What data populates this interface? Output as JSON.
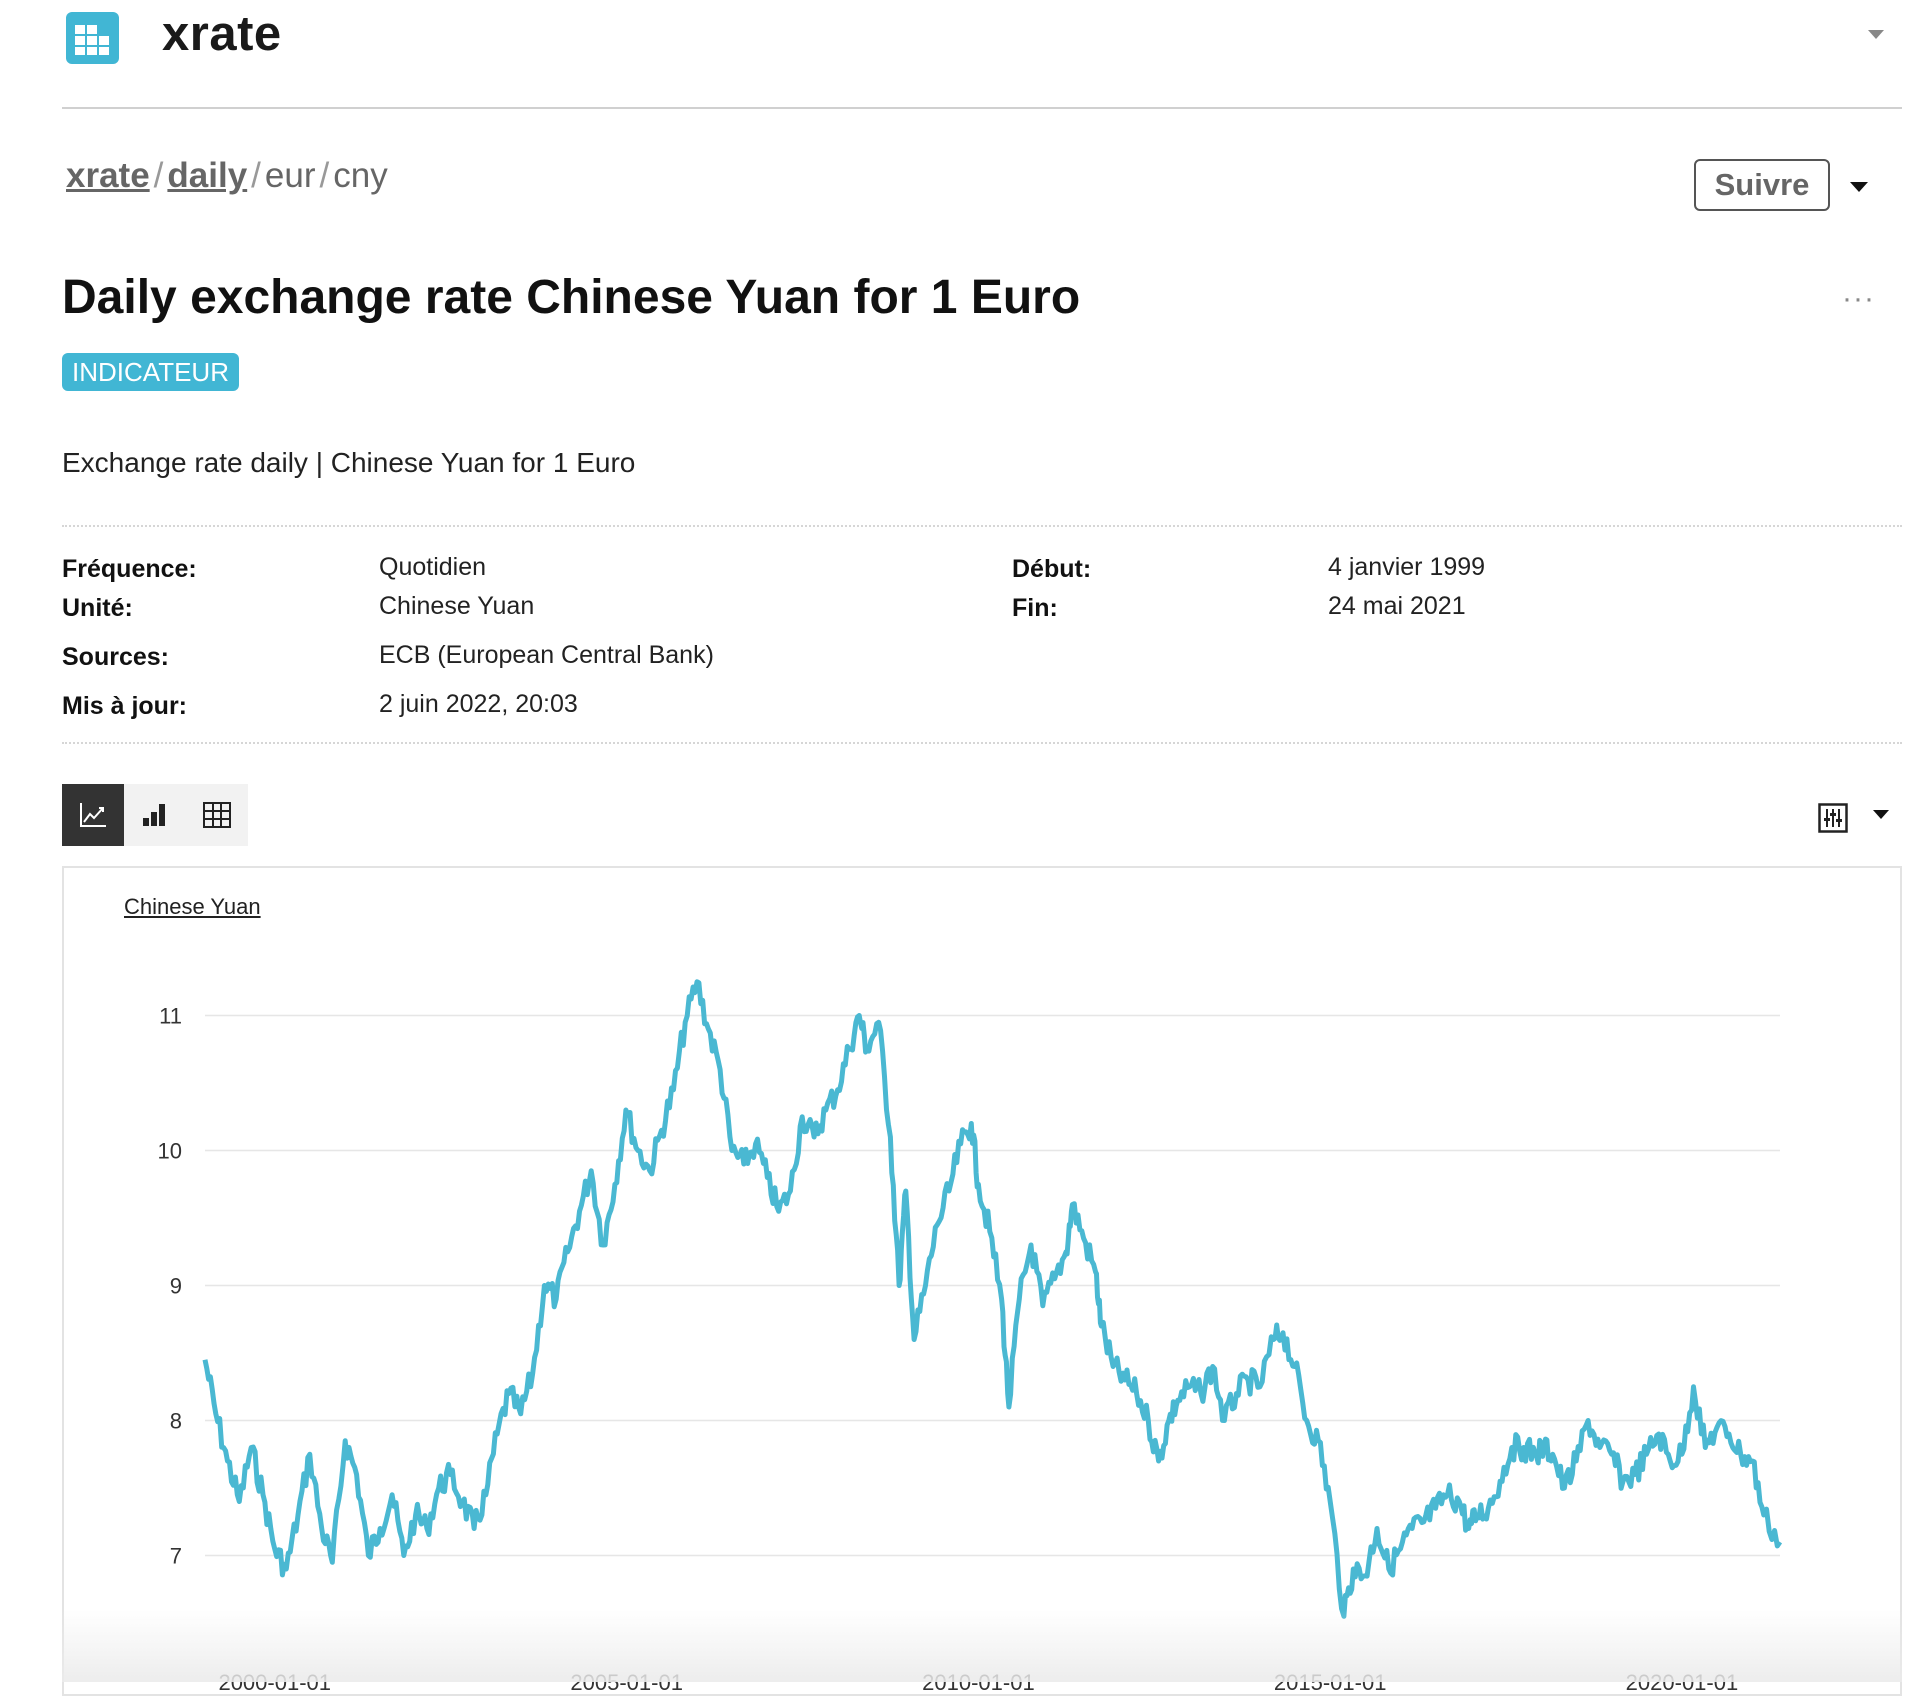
{
  "app": {
    "title": "xrate"
  },
  "breadcrumb": [
    {
      "label": "xrate",
      "link": true
    },
    {
      "label": "daily",
      "link": true
    },
    {
      "label": "eur",
      "link": false
    },
    {
      "label": "cny",
      "link": false
    }
  ],
  "follow_button": {
    "label": "Suivre"
  },
  "page": {
    "title": "Daily exchange rate Chinese Yuan for 1 Euro",
    "badge": "INDICATEUR",
    "description": "Exchange rate daily | Chinese Yuan for 1 Euro",
    "more": "···"
  },
  "metadata": {
    "frequency": {
      "label": "Fréquence:",
      "value": "Quotidien"
    },
    "unit": {
      "label": "Unité:",
      "value": "Chinese Yuan"
    },
    "sources": {
      "label": "Sources:",
      "value": "ECB (European Central Bank)"
    },
    "updated": {
      "label": "Mis à jour:",
      "value": "2 juin 2022, 20:03"
    },
    "start": {
      "label": "Début:",
      "value": "4 janvier 1999"
    },
    "end": {
      "label": "Fin:",
      "value": "24 mai 2021"
    }
  },
  "view_tabs": [
    {
      "icon": "line-chart-icon",
      "active": true
    },
    {
      "icon": "bar-chart-icon",
      "active": false
    },
    {
      "icon": "table-grid-icon",
      "active": false
    }
  ],
  "colors": {
    "accent": "#41b6d4",
    "series": "#4ab8d2",
    "active_tab": "#333333"
  },
  "chart_data": {
    "type": "line",
    "ylabel": "Chinese Yuan",
    "yticks": [
      7,
      8,
      9,
      10,
      11
    ],
    "ylim": [
      6.5,
      11.4
    ],
    "xlim": [
      "1999-01-04",
      "2021-05-24"
    ],
    "xticks": [
      "2000-01-01",
      "2005-01-01",
      "2010-01-01",
      "2015-01-01",
      "2020-01-01"
    ],
    "grid": true,
    "series": [
      {
        "name": "",
        "x": [
          "1999-01-04",
          "1999-03-01",
          "1999-05-01",
          "1999-07-01",
          "1999-09-01",
          "1999-11-01",
          "2000-01-01",
          "2000-03-01",
          "2000-05-01",
          "2000-07-01",
          "2000-09-01",
          "2000-10-26",
          "2001-01-01",
          "2001-03-01",
          "2001-05-01",
          "2001-07-01",
          "2001-09-01",
          "2001-11-01",
          "2002-01-01",
          "2002-03-01",
          "2002-05-01",
          "2002-07-01",
          "2002-09-01",
          "2002-11-01",
          "2003-01-01",
          "2003-03-01",
          "2003-05-01",
          "2003-07-01",
          "2003-09-01",
          "2003-11-01",
          "2004-01-01",
          "2004-03-01",
          "2004-05-01",
          "2004-07-01",
          "2004-09-01",
          "2004-11-01",
          "2004-12-28",
          "2005-03-01",
          "2005-05-01",
          "2005-07-01",
          "2005-09-01",
          "2005-11-01",
          "2006-01-01",
          "2006-03-01",
          "2006-05-01",
          "2006-07-01",
          "2006-09-01",
          "2006-11-01",
          "2007-01-01",
          "2007-03-01",
          "2007-05-01",
          "2007-07-01",
          "2007-09-01",
          "2007-11-01",
          "2008-01-01",
          "2008-03-01",
          "2008-04-22",
          "2008-06-01",
          "2008-08-01",
          "2008-10-01",
          "2008-11-15",
          "2008-12-20",
          "2009-02-01",
          "2009-04-01",
          "2009-06-01",
          "2009-08-01",
          "2009-10-01",
          "2009-11-25",
          "2010-01-01",
          "2010-03-01",
          "2010-05-01",
          "2010-06-08",
          "2010-08-01",
          "2010-10-01",
          "2010-12-01",
          "2011-02-01",
          "2011-04-01",
          "2011-05-04",
          "2011-07-01",
          "2011-09-01",
          "2011-10-01",
          "2011-12-01",
          "2012-02-01",
          "2012-04-01",
          "2012-06-01",
          "2012-07-24",
          "2012-09-15",
          "2012-11-01",
          "2013-01-01",
          "2013-03-01",
          "2013-05-01",
          "2013-07-01",
          "2013-09-01",
          "2013-11-01",
          "2014-01-01",
          "2014-03-13",
          "2014-05-01",
          "2014-07-01",
          "2014-09-01",
          "2014-11-01",
          "2015-01-01",
          "2015-03-13",
          "2015-05-01",
          "2015-07-01",
          "2015-09-01",
          "2015-11-01",
          "2016-01-01",
          "2016-03-01",
          "2016-05-01",
          "2016-07-01",
          "2016-09-01",
          "2016-11-01",
          "2016-12-20",
          "2017-02-01",
          "2017-04-01",
          "2017-06-01",
          "2017-08-01",
          "2017-10-01",
          "2017-12-01",
          "2018-01-15",
          "2018-03-01",
          "2018-05-01",
          "2018-07-01",
          "2018-09-01",
          "2018-11-01",
          "2019-01-01",
          "2019-03-01",
          "2019-05-01",
          "2019-07-01",
          "2019-09-03",
          "2019-11-01",
          "2020-01-01",
          "2020-03-01",
          "2020-05-01",
          "2020-07-01",
          "2020-09-01",
          "2020-11-01",
          "2021-01-01",
          "2021-03-01",
          "2021-05-24"
        ],
        "values": [
          8.45,
          8.05,
          7.7,
          7.4,
          7.8,
          7.45,
          7.05,
          6.9,
          7.3,
          7.75,
          7.2,
          6.95,
          7.85,
          7.6,
          7.0,
          7.2,
          7.45,
          7.0,
          7.3,
          7.2,
          7.5,
          7.6,
          7.4,
          7.2,
          7.45,
          7.9,
          8.2,
          8.05,
          8.35,
          9.0,
          8.9,
          9.25,
          9.55,
          9.85,
          9.3,
          9.75,
          10.3,
          10.0,
          9.85,
          10.15,
          10.45,
          10.95,
          11.25,
          10.9,
          10.6,
          10.0,
          9.9,
          10.05,
          9.8,
          9.55,
          9.7,
          10.25,
          10.1,
          10.3,
          10.45,
          10.75,
          11.0,
          10.75,
          10.95,
          10.1,
          9.0,
          9.7,
          8.6,
          9.0,
          9.45,
          9.7,
          10.05,
          10.2,
          9.75,
          9.4,
          8.9,
          8.1,
          8.9,
          9.3,
          8.85,
          9.05,
          9.25,
          9.6,
          9.35,
          9.1,
          8.7,
          8.4,
          8.3,
          8.2,
          8.0,
          7.7,
          8.0,
          8.15,
          8.25,
          8.2,
          8.4,
          8.0,
          8.2,
          8.3,
          8.25,
          8.6,
          8.65,
          8.4,
          8.0,
          7.85,
          7.4,
          6.55,
          6.9,
          6.85,
          7.2,
          6.9,
          7.05,
          7.2,
          7.25,
          7.35,
          7.45,
          7.4,
          7.2,
          7.3,
          7.35,
          7.55,
          7.8,
          7.8,
          7.75,
          7.8,
          7.75,
          7.5,
          7.7,
          8.0,
          7.8,
          7.75,
          7.55,
          7.6,
          7.75,
          7.9,
          7.7,
          7.75,
          8.25,
          7.8,
          7.95,
          7.9,
          7.75,
          7.7,
          7.3,
          7.1
        ]
      }
    ]
  }
}
